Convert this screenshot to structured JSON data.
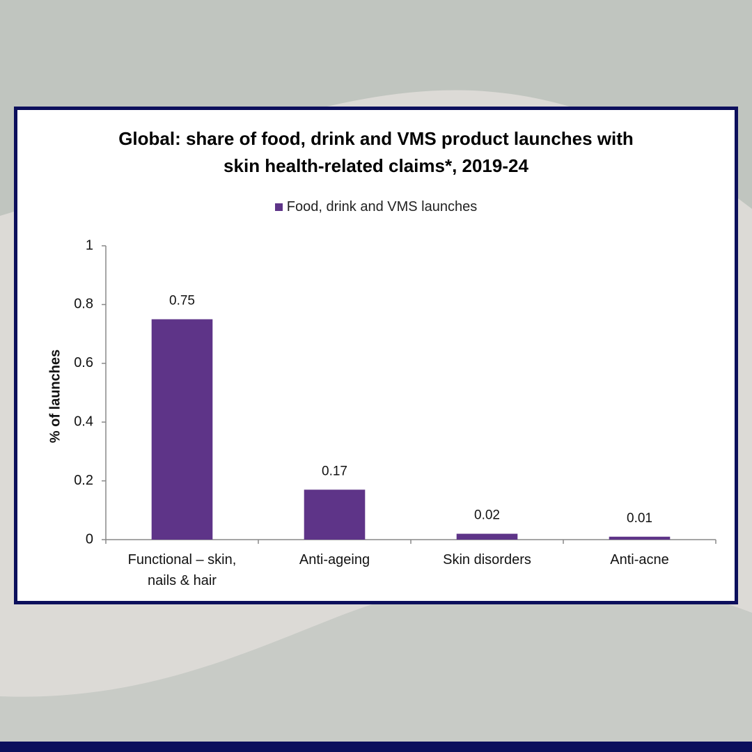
{
  "chart_data": {
    "type": "bar",
    "title": "Global: share of food, drink and VMS product launches with skin health-related claims*, 2019-24",
    "categories": [
      "Functional – skin, nails & hair",
      "Anti-ageing",
      "Skin disorders",
      "Anti-acne"
    ],
    "series": [
      {
        "name": "Food, drink and VMS launches",
        "color": "#5e3488",
        "values": [
          0.75,
          0.17,
          0.02,
          0.01
        ]
      }
    ],
    "y_label": "% of launches",
    "ylim": [
      0,
      1
    ],
    "yticks": [
      0,
      0.2,
      0.4,
      0.6,
      0.8,
      1
    ],
    "legend": "top"
  }
}
